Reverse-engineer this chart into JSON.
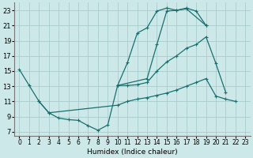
{
  "background_color": "#cce8e8",
  "grid_color": "#aacccc",
  "line_color": "#1a7070",
  "xlabel": "Humidex (Indice chaleur)",
  "xlim": [
    -0.5,
    23.5
  ],
  "ylim": [
    6.5,
    24
  ],
  "yticks": [
    7,
    9,
    11,
    13,
    15,
    17,
    19,
    21,
    23
  ],
  "xticks": [
    0,
    1,
    2,
    3,
    4,
    5,
    6,
    7,
    8,
    9,
    10,
    11,
    12,
    13,
    14,
    15,
    16,
    17,
    18,
    19,
    20,
    21,
    22,
    23
  ],
  "series_data": [
    {
      "name": "line1_top_arc",
      "xy": [
        [
          0,
          15.2
        ],
        [
          1,
          13.1
        ],
        [
          2,
          11.0
        ],
        [
          3,
          9.5
        ],
        [
          4,
          8.8
        ],
        [
          5,
          8.6
        ],
        [
          6,
          8.5
        ],
        [
          7,
          7.8
        ],
        [
          8,
          7.2
        ],
        [
          9,
          7.9
        ],
        [
          10,
          13.1
        ],
        [
          11,
          16.1
        ],
        [
          12,
          20.0
        ],
        [
          13,
          20.7
        ],
        [
          14,
          22.9
        ],
        [
          15,
          23.3
        ],
        [
          16,
          23.0
        ],
        [
          17,
          23.3
        ],
        [
          18,
          22.9
        ],
        [
          19,
          21.0
        ]
      ]
    },
    {
      "name": "line2_mid_arc",
      "xy": [
        [
          10,
          13.1
        ],
        [
          13,
          14.0
        ],
        [
          14,
          18.5
        ],
        [
          15,
          22.9
        ],
        [
          16,
          23.0
        ],
        [
          17,
          23.2
        ],
        [
          19,
          21.0
        ]
      ]
    },
    {
      "name": "line3_lower_arc",
      "xy": [
        [
          10,
          13.1
        ],
        [
          11,
          13.1
        ],
        [
          12,
          13.2
        ],
        [
          13,
          13.5
        ],
        [
          14,
          15.0
        ],
        [
          15,
          16.2
        ],
        [
          16,
          17.0
        ],
        [
          17,
          18.0
        ],
        [
          18,
          18.5
        ],
        [
          19,
          19.5
        ],
        [
          20,
          16.0
        ],
        [
          21,
          12.2
        ]
      ]
    },
    {
      "name": "line4_bottom_flat",
      "xy": [
        [
          2,
          11.0
        ],
        [
          3,
          9.5
        ],
        [
          10,
          10.5
        ],
        [
          11,
          11.0
        ],
        [
          12,
          11.3
        ],
        [
          13,
          11.5
        ],
        [
          14,
          11.8
        ],
        [
          15,
          12.1
        ],
        [
          16,
          12.5
        ],
        [
          17,
          13.0
        ],
        [
          18,
          13.5
        ],
        [
          19,
          14.0
        ],
        [
          20,
          11.7
        ],
        [
          21,
          11.3
        ],
        [
          22,
          11.0
        ]
      ]
    }
  ]
}
